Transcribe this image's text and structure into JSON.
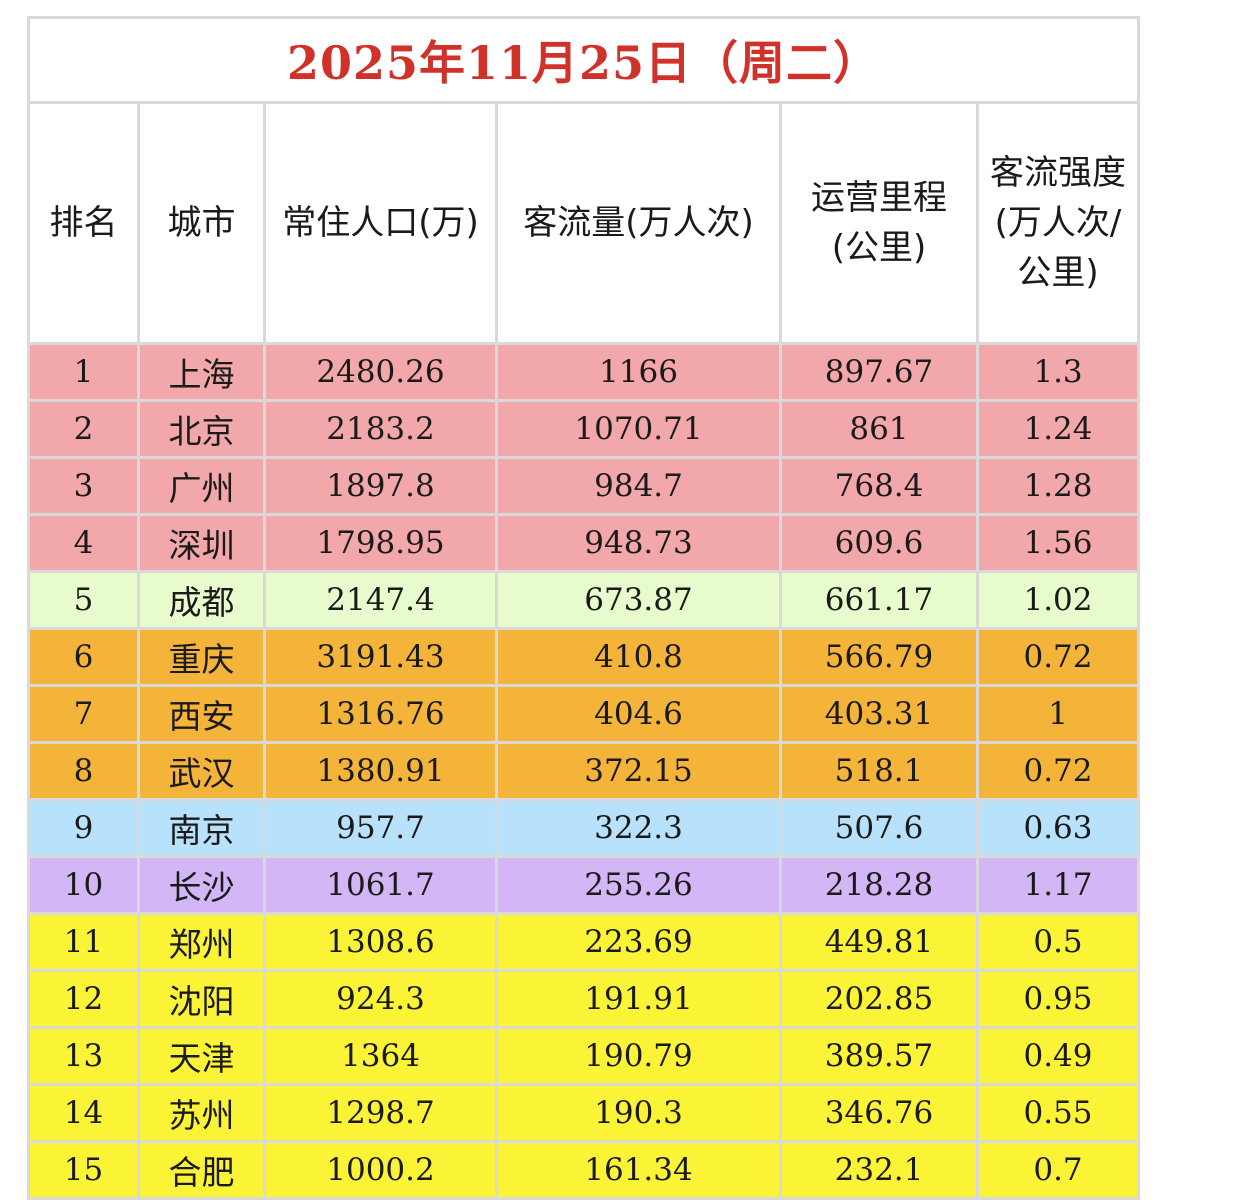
{
  "title": "2025年11月25日（周二）",
  "headers": [
    "排名",
    "城市",
    "常住人口(万)",
    "客流量(万人次)",
    "运营里程\n(公里)",
    "客流强度\n(万人次/\n公里)"
  ],
  "colors": {
    "title": "#d0322a",
    "pink": "#f2a7ab",
    "lightgreen": "#e8fbcc",
    "orange": "#f4b43a",
    "lightblue": "#b8e1fb",
    "purple": "#d3b6f6",
    "yellow": "#fbf336"
  },
  "chart_data": {
    "type": "table",
    "title": "2025年11月25日（周二）",
    "columns": [
      "排名",
      "城市",
      "常住人口(万)",
      "客流量(万人次)",
      "运营里程(公里)",
      "客流强度(万人次/公里)"
    ],
    "rows": [
      {
        "rank": "1",
        "city": "上海",
        "population": "2480.26",
        "ridership": "1166",
        "mileage": "897.67",
        "intensity": "1.3",
        "color": "pink"
      },
      {
        "rank": "2",
        "city": "北京",
        "population": "2183.2",
        "ridership": "1070.71",
        "mileage": "861",
        "intensity": "1.24",
        "color": "pink"
      },
      {
        "rank": "3",
        "city": "广州",
        "population": "1897.8",
        "ridership": "984.7",
        "mileage": "768.4",
        "intensity": "1.28",
        "color": "pink"
      },
      {
        "rank": "4",
        "city": "深圳",
        "population": "1798.95",
        "ridership": "948.73",
        "mileage": "609.6",
        "intensity": "1.56",
        "color": "pink"
      },
      {
        "rank": "5",
        "city": "成都",
        "population": "2147.4",
        "ridership": "673.87",
        "mileage": "661.17",
        "intensity": "1.02",
        "color": "lightgreen"
      },
      {
        "rank": "6",
        "city": "重庆",
        "population": "3191.43",
        "ridership": "410.8",
        "mileage": "566.79",
        "intensity": "0.72",
        "color": "orange"
      },
      {
        "rank": "7",
        "city": "西安",
        "population": "1316.76",
        "ridership": "404.6",
        "mileage": "403.31",
        "intensity": "1",
        "color": "orange"
      },
      {
        "rank": "8",
        "city": "武汉",
        "population": "1380.91",
        "ridership": "372.15",
        "mileage": "518.1",
        "intensity": "0.72",
        "color": "orange"
      },
      {
        "rank": "9",
        "city": "南京",
        "population": "957.7",
        "ridership": "322.3",
        "mileage": "507.6",
        "intensity": "0.63",
        "color": "lightblue"
      },
      {
        "rank": "10",
        "city": "长沙",
        "population": "1061.7",
        "ridership": "255.26",
        "mileage": "218.28",
        "intensity": "1.17",
        "color": "purple"
      },
      {
        "rank": "11",
        "city": "郑州",
        "population": "1308.6",
        "ridership": "223.69",
        "mileage": "449.81",
        "intensity": "0.5",
        "color": "yellow"
      },
      {
        "rank": "12",
        "city": "沈阳",
        "population": "924.3",
        "ridership": "191.91",
        "mileage": "202.85",
        "intensity": "0.95",
        "color": "yellow"
      },
      {
        "rank": "13",
        "city": "天津",
        "population": "1364",
        "ridership": "190.79",
        "mileage": "389.57",
        "intensity": "0.49",
        "color": "yellow"
      },
      {
        "rank": "14",
        "city": "苏州",
        "population": "1298.7",
        "ridership": "190.3",
        "mileage": "346.76",
        "intensity": "0.55",
        "color": "yellow"
      },
      {
        "rank": "15",
        "city": "合肥",
        "population": "1000.2",
        "ridership": "161.34",
        "mileage": "232.1",
        "intensity": "0.7",
        "color": "yellow"
      }
    ]
  }
}
